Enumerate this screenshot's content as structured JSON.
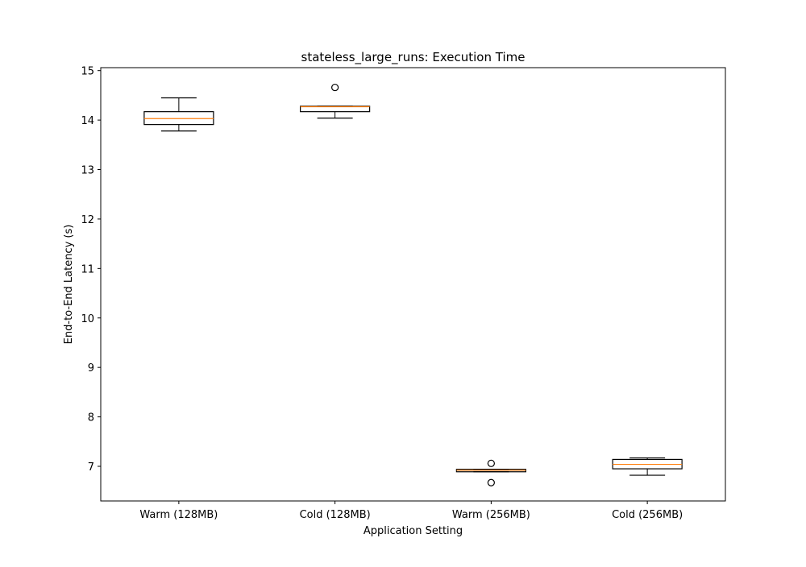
{
  "chart_data": {
    "type": "box",
    "title": "stateless_large_runs: Execution Time",
    "xlabel": "Application Setting",
    "ylabel": "End-to-End Latency (s)",
    "ylim": [
      6.3,
      15.06
    ],
    "yticks": [
      7,
      8,
      9,
      10,
      11,
      12,
      13,
      14,
      15
    ],
    "grid": false,
    "categories": [
      "Warm (128MB)",
      "Cold (128MB)",
      "Warm (256MB)",
      "Cold (256MB)"
    ],
    "boxes": [
      {
        "category": "Warm (128MB)",
        "whisker_low": 13.78,
        "q1": 13.91,
        "median": 14.03,
        "q3": 14.17,
        "whisker_high": 14.45,
        "outliers": []
      },
      {
        "category": "Cold (128MB)",
        "whisker_low": 14.04,
        "q1": 14.17,
        "median": 14.27,
        "q3": 14.28,
        "whisker_high": 14.28,
        "outliers": [
          14.66
        ]
      },
      {
        "category": "Warm (256MB)",
        "whisker_low": 6.89,
        "q1": 6.89,
        "median": 6.92,
        "q3": 6.94,
        "whisker_high": 6.94,
        "outliers": [
          7.06,
          6.67
        ]
      },
      {
        "category": "Cold (256MB)",
        "whisker_low": 6.82,
        "q1": 6.95,
        "median": 7.04,
        "q3": 7.14,
        "whisker_high": 7.17,
        "outliers": []
      }
    ],
    "colors": {
      "box": "#000000",
      "median": "#ff7f0e",
      "outlier": "#000000",
      "axes": "#000000",
      "background": "#ffffff"
    }
  }
}
